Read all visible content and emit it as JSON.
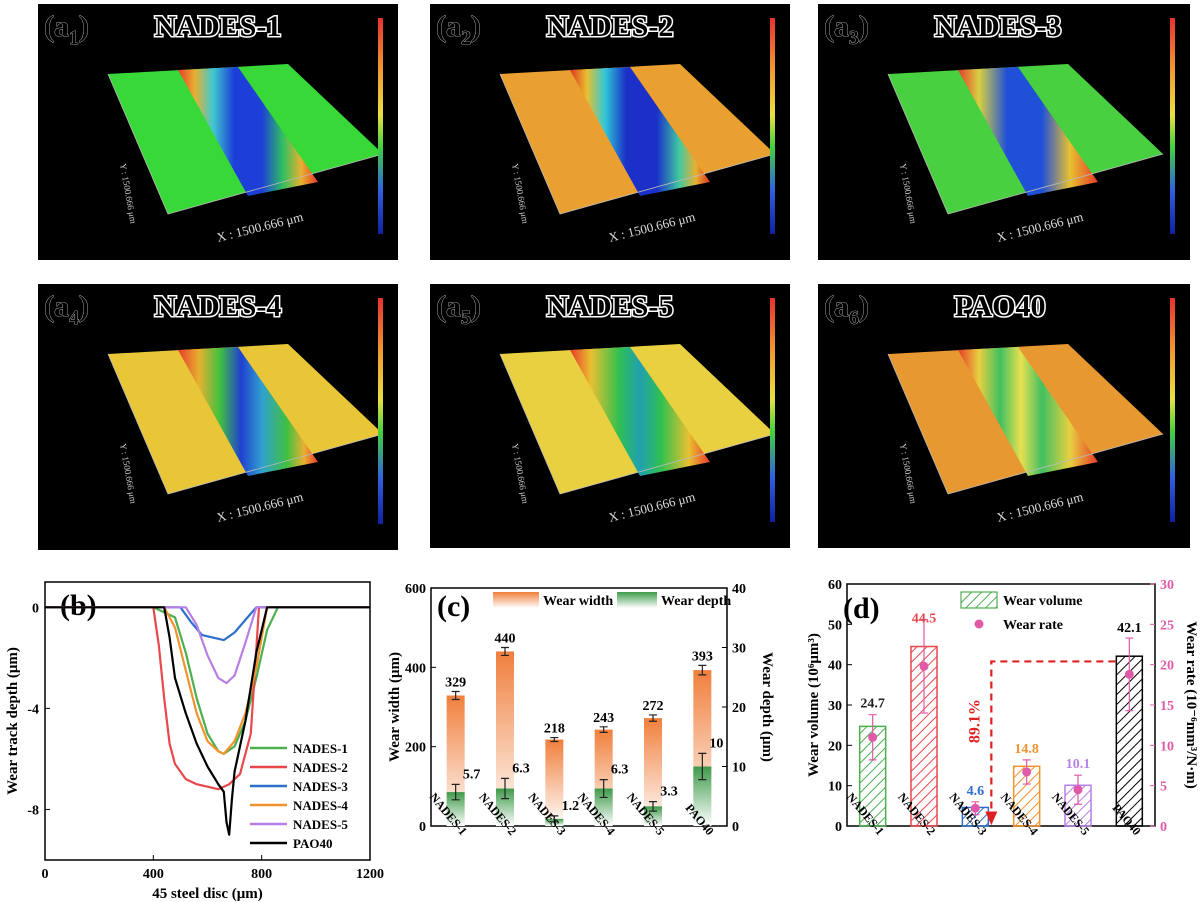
{
  "colors": {
    "nades1": "#4caf50",
    "nades2": "#e8474b",
    "nades3": "#2f6fcc",
    "nades4": "#f0922e",
    "nades5": "#b77fe6",
    "pao40": "#000000",
    "width_bar": "#f07f3c",
    "depth_bar": "#3e9a4a",
    "rate_dot": "#e05aa8",
    "reduction": "#e02020"
  },
  "topo_panels": [
    {
      "label_main": "a",
      "label_sub": "1",
      "title": "NADES-1",
      "axis_text": "X : 1500.666 μm",
      "y_axis_text": "Y : 1500.666 μm",
      "scheme": "green_blue"
    },
    {
      "label_main": "a",
      "label_sub": "2",
      "title": "NADES-2",
      "axis_text": "X : 1500.666 μm",
      "y_axis_text": "Y : 1500.666 μm",
      "scheme": "orange_blue"
    },
    {
      "label_main": "a",
      "label_sub": "3",
      "title": "NADES-3",
      "axis_text": "X : 1500.666 μm",
      "y_axis_text": "Y : 1500.666 μm",
      "scheme": "green_blue_narrow"
    },
    {
      "label_main": "a",
      "label_sub": "4",
      "title": "NADES-4",
      "axis_text": "X : 1500.666 μm",
      "y_axis_text": "Y : 1500.666 μm",
      "scheme": "yellow_blue"
    },
    {
      "label_main": "a",
      "label_sub": "5",
      "title": "NADES-5",
      "axis_text": "X : 1500.666 μm",
      "y_axis_text": "Y : 1500.666 μm",
      "scheme": "yellow_green"
    },
    {
      "label_main": "a",
      "label_sub": "6",
      "title": "PAO40",
      "axis_text": "X : 1500.666 μm",
      "y_axis_text": "Y : 1500.666 μm",
      "scheme": "orange_green"
    }
  ],
  "chart_data": [
    {
      "type": "line",
      "panel_label": "(b)",
      "xlabel": "45 steel disc (μm)",
      "ylabel": "Wear track depth (μm)",
      "xlim": [
        0,
        1200
      ],
      "ylim": [
        -10,
        1
      ],
      "xticks": [
        0,
        400,
        800,
        1200
      ],
      "yticks": [
        0,
        -4,
        -8
      ],
      "series": [
        {
          "name": "NADES-1",
          "color_key": "nades1",
          "x": [
            0,
            400,
            480,
            520,
            560,
            600,
            640,
            660,
            700,
            740,
            780,
            820,
            860,
            1200
          ],
          "y": [
            0,
            0,
            -0.4,
            -1.8,
            -3.6,
            -5.0,
            -5.7,
            -5.8,
            -5.5,
            -4.5,
            -2.8,
            -0.9,
            0,
            0
          ]
        },
        {
          "name": "NADES-2",
          "color_key": "nades2",
          "x": [
            0,
            400,
            420,
            440,
            460,
            480,
            520,
            560,
            600,
            640,
            680,
            720,
            760,
            790,
            1200
          ],
          "y": [
            0,
            0,
            -1.5,
            -3.6,
            -5.4,
            -6.2,
            -6.8,
            -7.0,
            -7.1,
            -7.2,
            -7.0,
            -6.6,
            -5.0,
            0,
            0
          ]
        },
        {
          "name": "NADES-3",
          "color_key": "nades3",
          "x": [
            0,
            500,
            540,
            580,
            620,
            660,
            700,
            740,
            780,
            1200
          ],
          "y": [
            0,
            0,
            -0.6,
            -1.1,
            -1.2,
            -1.3,
            -1.0,
            -0.5,
            0,
            0
          ]
        },
        {
          "name": "NADES-4",
          "color_key": "nades4",
          "x": [
            0,
            440,
            480,
            520,
            560,
            600,
            640,
            660,
            700,
            740,
            780,
            820,
            1200
          ],
          "y": [
            0,
            0,
            -0.8,
            -2.5,
            -4.2,
            -5.3,
            -5.7,
            -5.8,
            -5.3,
            -4.2,
            -2.4,
            0,
            0
          ]
        },
        {
          "name": "NADES-5",
          "color_key": "nades5",
          "x": [
            0,
            520,
            560,
            600,
            640,
            670,
            700,
            740,
            780,
            1200
          ],
          "y": [
            0,
            0,
            -0.7,
            -1.9,
            -2.8,
            -3.0,
            -2.7,
            -1.4,
            0,
            0
          ]
        },
        {
          "name": "PAO40",
          "color_key": "pao40",
          "x": [
            0,
            440,
            460,
            480,
            520,
            560,
            600,
            640,
            660,
            670,
            680,
            690,
            700,
            740,
            780,
            820,
            1200
          ],
          "y": [
            0,
            0,
            -1.2,
            -2.8,
            -4.2,
            -5.4,
            -6.3,
            -7.0,
            -7.3,
            -8.5,
            -9.0,
            -7.6,
            -6.5,
            -4.5,
            -1.8,
            0,
            0
          ]
        }
      ]
    },
    {
      "type": "bar",
      "panel_label": "(c)",
      "categories": [
        "NADES-1",
        "NADES-2",
        "NADES-3",
        "NADES-4",
        "NADES-5",
        "PAO40"
      ],
      "ylabel_left": "Wear width (μm)",
      "ylabel_right": "Wear depth (μm)",
      "ylim_left": [
        0,
        600
      ],
      "ylim_right": [
        0,
        40
      ],
      "yticks_left": [
        0,
        200,
        400,
        600
      ],
      "yticks_right": [
        0,
        10,
        20,
        30,
        40
      ],
      "legend": [
        "Wear width",
        "Wear depth"
      ],
      "series": [
        {
          "name": "Wear width",
          "values": [
            329,
            440,
            218,
            243,
            272,
            393
          ],
          "errors": [
            10,
            10,
            5,
            7,
            8,
            12
          ],
          "labels": [
            "329",
            "440",
            "218",
            "243",
            "272",
            "393"
          ]
        },
        {
          "name": "Wear depth",
          "values": [
            5.7,
            6.3,
            1.2,
            6.3,
            3.3,
            10
          ],
          "errors": [
            1.3,
            1.7,
            0.5,
            1.5,
            0.8,
            2.2
          ],
          "labels": [
            "5.7",
            "6.3",
            "1.2",
            "6.3",
            "3.3",
            "10"
          ]
        }
      ]
    },
    {
      "type": "bar",
      "panel_label": "(d)",
      "categories": [
        "NADES-1",
        "NADES-2",
        "NADES-3",
        "NADES-4",
        "NADES-5",
        "PAO40"
      ],
      "ylabel_left": "Wear volume (10⁶μm³)",
      "ylabel_right": "Wear rate (10⁻⁶mm³/N·m)",
      "ylim_left": [
        0,
        60
      ],
      "ylim_right": [
        0,
        30
      ],
      "yticks_left": [
        0,
        10,
        20,
        30,
        40,
        50,
        60
      ],
      "yticks_right": [
        0,
        5,
        10,
        15,
        20,
        25,
        30
      ],
      "legend": [
        "Wear volume",
        "Wear rate"
      ],
      "bar_colors": [
        "nades1",
        "nades2",
        "nades3",
        "nades4",
        "nades5",
        "pao40"
      ],
      "series": [
        {
          "name": "Wear volume",
          "values": [
            24.7,
            44.5,
            4.6,
            14.8,
            10.1,
            42.1
          ],
          "errors": [
            5.8,
            8.0,
            1.5,
            3.2,
            3.5,
            5.9
          ],
          "labels": [
            "24.7",
            "44.5",
            "4.6",
            "14.8",
            "10.1",
            "42.1"
          ]
        },
        {
          "name": "Wear rate",
          "values": [
            11.0,
            19.8,
            2.2,
            6.7,
            4.5,
            18.8
          ],
          "errors": [
            2.8,
            5.8,
            0.8,
            1.5,
            1.8,
            4.5
          ]
        }
      ],
      "annotation": "89.1%"
    }
  ]
}
